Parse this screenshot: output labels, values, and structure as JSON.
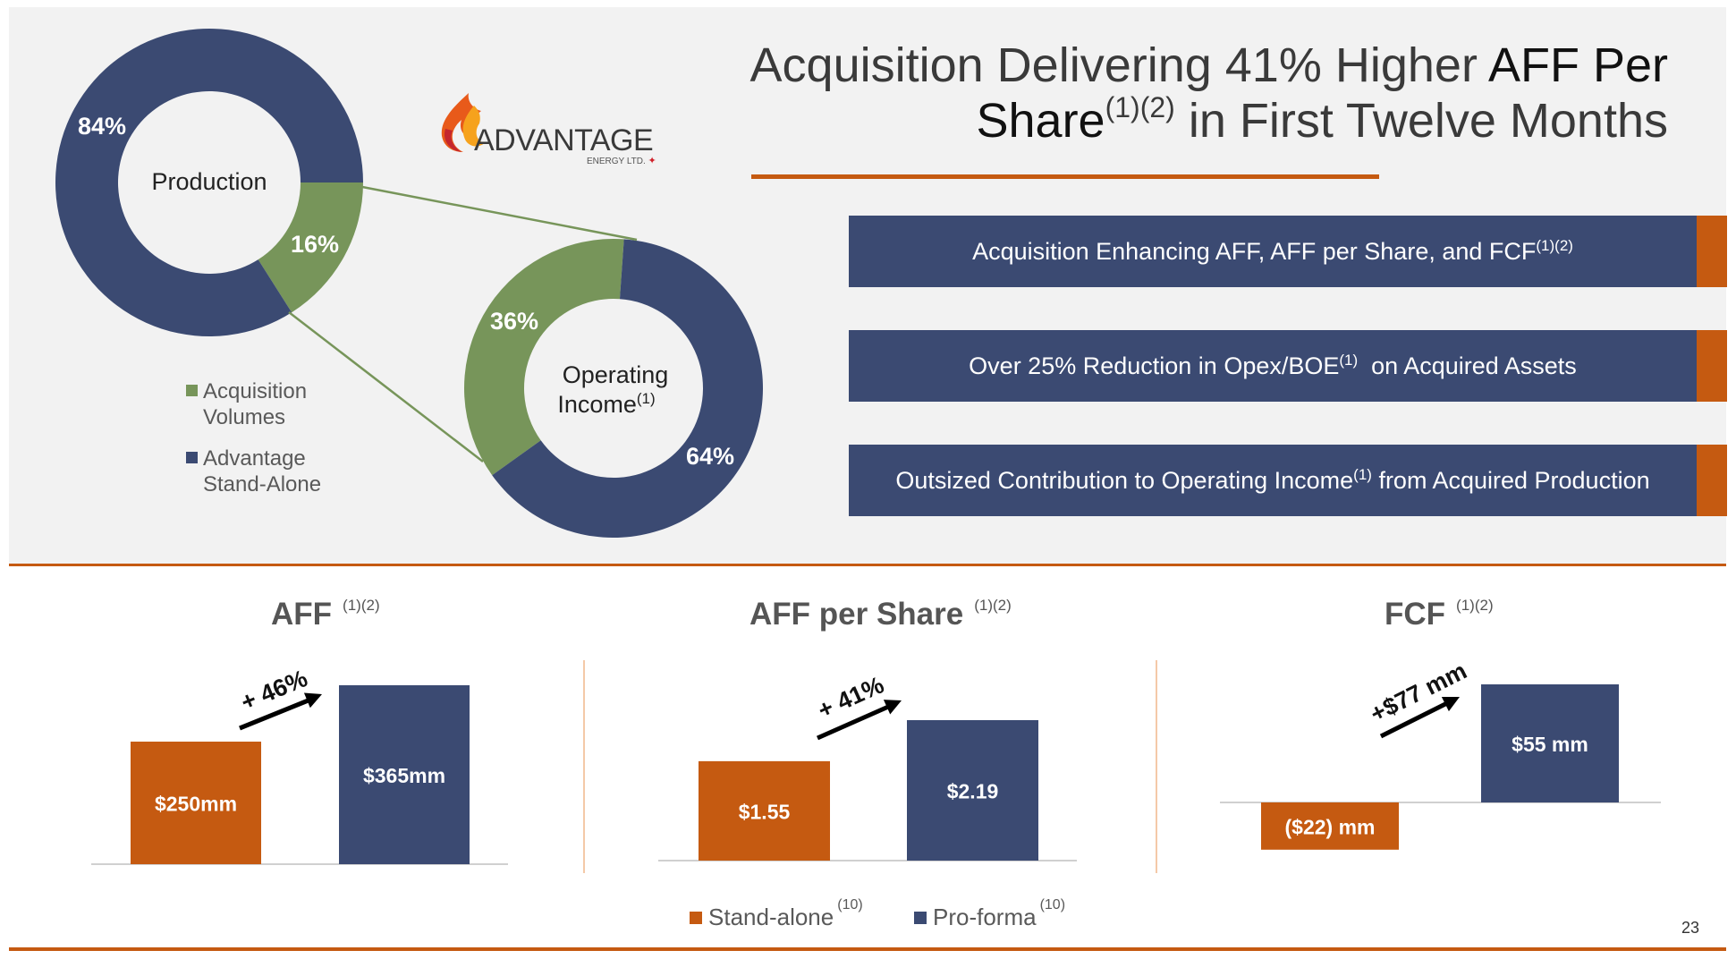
{
  "slide": {
    "title_part1": "Acquisition Delivering 41% Higher ",
    "title_part2": "AFF Per Share",
    "title_sup": "(1)(2)",
    "title_part3": " in First Twelve Months",
    "page_number": "23"
  },
  "logo": {
    "name": "ADVANTAGE",
    "tagline": "ENERGY LTD."
  },
  "callouts": [
    {
      "text": "Acquisition Enhancing AFF, AFF per Share, and FCF",
      "sup": "(1)(2)",
      "tail": ""
    },
    {
      "text": "Over 25% Reduction in Opex/BOE",
      "sup": "(1)",
      "tail": "  on Acquired Assets"
    },
    {
      "text": "Outsized Contribution to Operating Income",
      "sup": "(1)",
      "tail": " from Acquired Production"
    }
  ],
  "donut_legend": [
    {
      "line1": "Acquisition",
      "line2": "Volumes",
      "color": "#77955a"
    },
    {
      "line1": "Advantage",
      "line2": "Stand-Alone",
      "color": "#3b4a72"
    }
  ],
  "bar_legend": [
    {
      "label": "Stand-alone",
      "sup": "(10)",
      "color": "#c55a11"
    },
    {
      "label": "Pro-forma",
      "sup": "(10)",
      "color": "#3b4a72"
    }
  ],
  "colors": {
    "navy": "#3b4a72",
    "orange": "#c55a11",
    "green": "#77955a"
  },
  "chart_data": [
    {
      "type": "pie",
      "center_label": "Production",
      "center_sup": "",
      "slices": [
        {
          "name": "Advantage Stand-Alone",
          "value": 84,
          "label": "84%"
        },
        {
          "name": "Acquisition Volumes",
          "value": 16,
          "label": "16%"
        }
      ]
    },
    {
      "type": "pie",
      "center_label": "Operating Income",
      "center_label_line1": "Operating",
      "center_label_line2": "Income",
      "center_sup": "(1)",
      "slices": [
        {
          "name": "Advantage Stand-Alone",
          "value": 64,
          "label": "64%"
        },
        {
          "name": "Acquisition Volumes",
          "value": 36,
          "label": "36%"
        }
      ]
    },
    {
      "type": "bar",
      "title": "AFF",
      "title_sup": "(1)(2)",
      "categories": [
        "Stand-alone",
        "Pro-forma"
      ],
      "values": [
        250,
        365
      ],
      "data_labels": [
        "$250mm",
        "$365mm"
      ],
      "annotation": "+ 46%",
      "ylim": [
        0,
        365
      ]
    },
    {
      "type": "bar",
      "title": "AFF per Share",
      "title_sup": "(1)(2)",
      "categories": [
        "Stand-alone",
        "Pro-forma"
      ],
      "values": [
        1.55,
        2.19
      ],
      "data_labels": [
        "$1.55",
        "$2.19"
      ],
      "annotation": "+ 41%",
      "ylim": [
        0,
        2.19
      ]
    },
    {
      "type": "bar",
      "title": "FCF",
      "title_sup": "(1)(2)",
      "categories": [
        "Stand-alone",
        "Pro-forma"
      ],
      "values": [
        -22,
        55
      ],
      "data_labels": [
        "($22) mm",
        "$55 mm"
      ],
      "annotation": "+$77 mm",
      "ylim": [
        -22,
        55
      ]
    }
  ]
}
